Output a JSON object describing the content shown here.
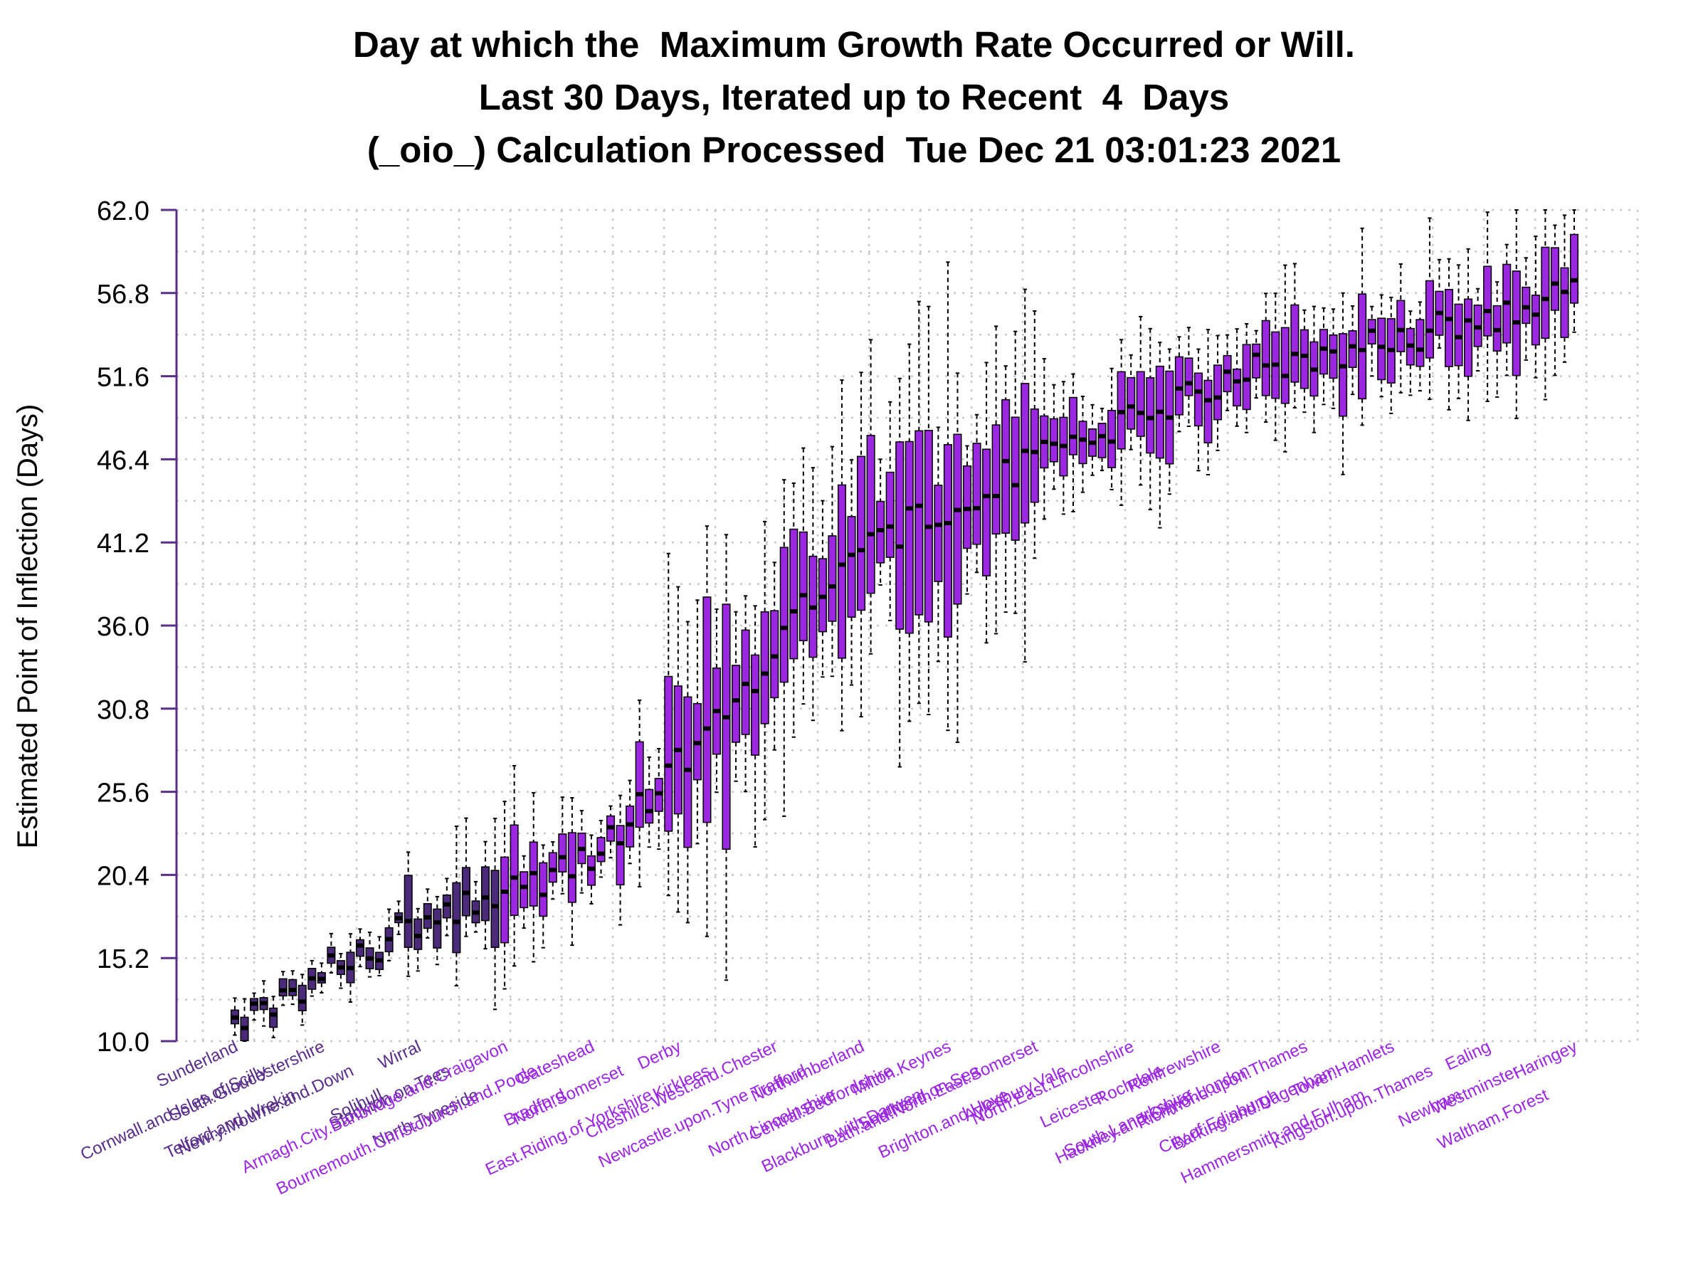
{
  "chart_data": {
    "type": "boxplot",
    "title_lines": [
      "Day at which the  Maximum Growth Rate Occurred or Will.",
      "Last 30 Days, Iterated up to Recent  4  Days",
      "(_oio_) Calculation Processed  Tue Dec 21 03:01:23 2021"
    ],
    "xlabel": "",
    "ylabel": "Estimated Point of Inflection (Days)",
    "ylim": [
      10.0,
      62.0
    ],
    "yticks": [
      "10.0",
      "15.2",
      "20.4",
      "25.6",
      "30.8",
      "36.0",
      "41.2",
      "46.4",
      "51.6",
      "56.8",
      "62.0"
    ],
    "grid": true,
    "colors": {
      "dark_box": "#4b2a7a",
      "bright_box": "#9b27e0",
      "axis": "#5a2f8a",
      "median": "#000000",
      "grid": "#c8c8c8"
    },
    "x_tick_labels_visible": [
      "Sunderland",
      "Cornwall.and.Isles.of.Scilly",
      "Telford.and.Wrekin",
      "South.Gloucestershire",
      "Newry.Mourne.and.Down",
      "Solihull",
      "Wirral",
      "Stockton.on.Tees",
      "North.Tyneside",
      "Armagh.City.Banbridge.and.Craigavon",
      "Bournemouth.Christchurch.and.Poole",
      "Bradford",
      "Gateshead",
      "North.Somerset",
      "East.Riding.of.Yorkshire",
      "Derby",
      "Kirklees",
      "Newcastle.upon.Tyne",
      "Cheshire.West.and.Chester",
      "Trafford",
      "North.Lincolnshire",
      "Northumberland",
      "Central.Bedfordshire",
      "Blackburn.with.Darwen",
      "Milton.Keynes",
      "Southend.on.Sea",
      "Brighton.and.Hove",
      "Bath.and.North.East.Somerset",
      "Aylesbury.Vale",
      "Leicester",
      "North.East.Lincolnshire",
      "Rochdale",
      "South.Lanarkshire",
      "Renfrewshire",
      "Hackney.and.City.of.London",
      "City.of.Edinburgh",
      "Richmond.upon.Thames",
      "Barking.and.Dagenham",
      "Hammersmith.and.Fulham",
      "Tower.Hamlets",
      "Kingston.upon.Thames",
      "Newham",
      "Ealing",
      "Westminster",
      "Waltham.Forest",
      "Haringey"
    ],
    "box_count": 140,
    "series": [
      {
        "name": "dark_group",
        "first_box": 1,
        "last_box": 28
      },
      {
        "name": "bright_group",
        "first_box": 29,
        "last_box": 140
      }
    ],
    "median_min": 10.6,
    "median_max": 57.6,
    "median_trend": [
      [
        1,
        11.5
      ],
      [
        5,
        12.5
      ],
      [
        10,
        14.0
      ],
      [
        15,
        15.8
      ],
      [
        20,
        17.5
      ],
      [
        25,
        18.8
      ],
      [
        30,
        19.6
      ],
      [
        35,
        20.5
      ],
      [
        40,
        22.5
      ],
      [
        45,
        26.0
      ],
      [
        50,
        29.0
      ],
      [
        55,
        33.0
      ],
      [
        60,
        37.5
      ],
      [
        65,
        40.5
      ],
      [
        70,
        42.0
      ],
      [
        75,
        43.5
      ],
      [
        80,
        45.0
      ],
      [
        85,
        46.5
      ],
      [
        90,
        48.0
      ],
      [
        95,
        49.0
      ],
      [
        100,
        50.5
      ],
      [
        105,
        51.5
      ],
      [
        110,
        52.5
      ],
      [
        115,
        53.0
      ],
      [
        120,
        53.5
      ],
      [
        125,
        54.5
      ],
      [
        130,
        55.2
      ],
      [
        135,
        56.0
      ],
      [
        140,
        57.2
      ]
    ]
  }
}
